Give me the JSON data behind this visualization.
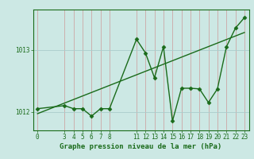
{
  "xlabel": "Graphe pression niveau de la mer (hPa)",
  "background_color": "#cce8e4",
  "line_color": "#1a6b1a",
  "trend_color": "#1a6b1a",
  "vgrid_color": "#cc9999",
  "hgrid_color": "#aacccc",
  "hours": [
    0,
    3,
    4,
    5,
    6,
    7,
    8,
    11,
    12,
    13,
    14,
    15,
    16,
    17,
    18,
    19,
    20,
    21,
    22,
    23
  ],
  "values": [
    1012.05,
    1012.1,
    1012.05,
    1012.05,
    1011.93,
    1012.05,
    1012.05,
    1013.17,
    1012.95,
    1012.55,
    1013.05,
    1011.85,
    1012.38,
    1012.38,
    1012.37,
    1012.15,
    1012.37,
    1013.05,
    1013.35,
    1013.52
  ],
  "trend_x": [
    0,
    23
  ],
  "trend_y": [
    1011.97,
    1013.28
  ],
  "ylim": [
    1011.7,
    1013.65
  ],
  "yticks": [
    1012,
    1013
  ],
  "xticks": [
    0,
    3,
    4,
    5,
    6,
    7,
    8,
    11,
    12,
    13,
    14,
    15,
    16,
    17,
    18,
    19,
    20,
    21,
    22,
    23
  ],
  "xlim": [
    -0.5,
    23.5
  ],
  "marker": "D",
  "markersize": 2.5,
  "linewidth": 1.0,
  "tick_fontsize": 5.5,
  "label_fontsize": 6.5
}
